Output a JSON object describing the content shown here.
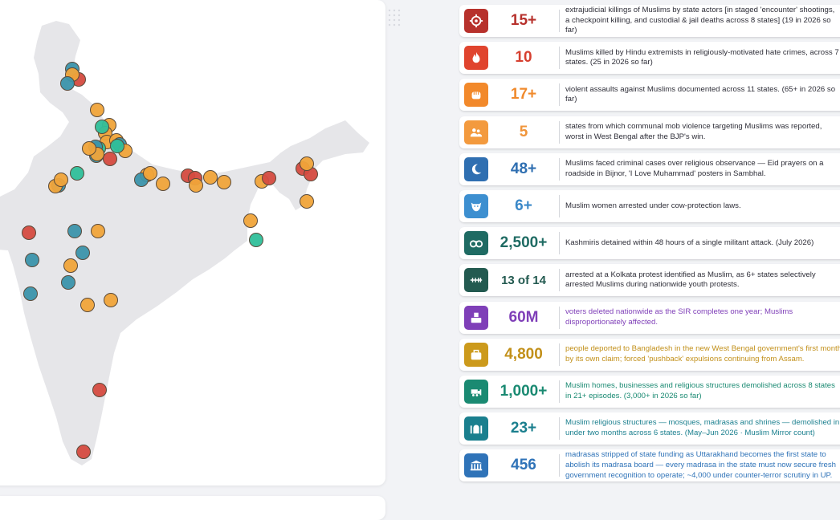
{
  "map": {
    "markers": [
      {
        "color": "#3b93ab"
      },
      {
        "color": "#d54b40"
      },
      {
        "color": "#f0a43a"
      },
      {
        "color": "#3b93ab"
      },
      {
        "color": "#f0a43a"
      },
      {
        "color": "#f0a43a"
      },
      {
        "color": "#f0a43a"
      },
      {
        "color": "#2fbf9a"
      },
      {
        "color": "#f0a43a"
      },
      {
        "color": "#f0a43a"
      },
      {
        "color": "#2fbf9a"
      },
      {
        "color": "#3b93ab"
      },
      {
        "color": "#3b93ab"
      },
      {
        "color": "#3b93ab"
      },
      {
        "color": "#f0a43a"
      },
      {
        "color": "#f0a43a"
      },
      {
        "color": "#d54b40"
      },
      {
        "color": "#f0a43a"
      },
      {
        "color": "#2fbf9a"
      },
      {
        "color": "#3b93ab"
      },
      {
        "color": "#f0a43a"
      },
      {
        "color": "#f0a43a"
      },
      {
        "color": "#f0a43a"
      },
      {
        "color": "#3b93ab"
      },
      {
        "color": "#f0a43a"
      },
      {
        "color": "#2fbf9a"
      },
      {
        "color": "#d54b40"
      },
      {
        "color": "#d54b40"
      },
      {
        "color": "#f0a43a"
      },
      {
        "color": "#f0a43a"
      },
      {
        "color": "#f0a43a"
      },
      {
        "color": "#f0a43a"
      },
      {
        "color": "#f0a43a"
      },
      {
        "color": "#d54b40"
      },
      {
        "color": "#d54b40"
      },
      {
        "color": "#d54b40"
      },
      {
        "color": "#f0a43a"
      },
      {
        "color": "#f0a43a"
      },
      {
        "color": "#f0a43a"
      },
      {
        "color": "#2fbf9a"
      },
      {
        "color": "#d54b40"
      },
      {
        "color": "#3b93ab"
      },
      {
        "color": "#f0a43a"
      },
      {
        "color": "#3b93ab"
      },
      {
        "color": "#3b93ab"
      },
      {
        "color": "#f0a43a"
      },
      {
        "color": "#3b93ab"
      },
      {
        "color": "#3b93ab"
      },
      {
        "color": "#f0a43a"
      },
      {
        "color": "#f0a43a"
      },
      {
        "color": "#d54b40"
      },
      {
        "color": "#d54b40"
      }
    ]
  },
  "stats": [
    {
      "icon": "crosshair-icon",
      "color": "#b7312c",
      "value": "15+",
      "value_color": "#b7312c",
      "text_color": "#2e2e38",
      "text": "extrajudicial killings of Muslims by state actors [in staged 'encounter' shootings,\na checkpoint killing, and custodial & jail deaths across 8 states] (19 in 2026 so\nfar)"
    },
    {
      "icon": "flame-icon",
      "color": "#e0442e",
      "value": "10",
      "value_color": "#d64030",
      "text_color": "#2e2e38",
      "text": "Muslims killed by Hindu extremists in religiously-motivated hate crimes, across 7\nstates. (25 in 2026 so far)"
    },
    {
      "icon": "fist-icon",
      "color": "#f2892b",
      "value": "17+",
      "value_color": "#f08a2c",
      "text_color": "#2e2e38",
      "text": "violent assaults against Muslims documented across 11 states. (65+ in 2026 so\nfar)"
    },
    {
      "icon": "mob-icon",
      "color": "#f39a3e",
      "value": "5",
      "value_color": "#f0953b",
      "text_color": "#2e2e38",
      "text": "states from which communal mob violence targeting Muslims was reported,\nworst in West Bengal after the BJP's win."
    },
    {
      "icon": "crescent-icon",
      "color": "#2f6fb1",
      "value": "48+",
      "value_color": "#2f6fb1",
      "text_color": "#2e2e38",
      "text": "Muslims faced criminal cases over religious observance — Eid prayers on a\nroadside in Bijnor, 'I Love Muhammad' posters in Sambhal."
    },
    {
      "icon": "cow-icon",
      "color": "#3d8fd0",
      "value": "6+",
      "value_color": "#3a88c8",
      "text_color": "#2e2e38",
      "text": "Muslim women arrested under cow-protection laws."
    },
    {
      "icon": "handcuffs-icon",
      "color": "#1f6b63",
      "value": "2,500+",
      "value_color": "#1f6b63",
      "text_color": "#2e2e38",
      "text": "Kashmiris detained within 48 hours of a single militant attack. (July 2026)"
    },
    {
      "icon": "chain-icon",
      "color": "#235a50",
      "value": "13 of 14",
      "value_color": "#235a50",
      "text_color": "#2e2e38",
      "text": "arrested at a Kolkata protest identified as Muslim, as 6+ states selectively\narrested Muslims during nationwide youth protests."
    },
    {
      "icon": "ballot-icon",
      "color": "#7f3fb8",
      "value": "60M",
      "value_color": "#7f3fb8",
      "text_color": "#7f3fb8",
      "text": "voters deleted nationwide as the SIR completes one year; Muslims\ndisproportionately affected."
    },
    {
      "icon": "suitcase-icon",
      "color": "#cc9a1c",
      "value": "4,800",
      "value_color": "#c2901a",
      "text_color": "#c2901a",
      "text": "people deported to Bangladesh in the new West Bengal government's first month,\nby its own claim; forced 'pushback' expulsions continuing from Assam."
    },
    {
      "icon": "bulldozer-icon",
      "color": "#1a8a72",
      "value": "1,000+",
      "value_color": "#1a8a72",
      "text_color": "#1a8a72",
      "text": "Muslim homes, businesses and religious structures demolished across 8 states\nin 21+ episodes. (3,000+ in 2026 so far)"
    },
    {
      "icon": "mosque-icon",
      "color": "#1a7f8e",
      "value": "23+",
      "value_color": "#1a7f8e",
      "text_color": "#1a7f8e",
      "text": "Muslim religious structures — mosques, madrasas and shrines — demolished in\nunder two months across 6 states. (May–Jun 2026 · Muslim Mirror count)"
    },
    {
      "icon": "institution-icon",
      "color": "#2f73b8",
      "value": "456",
      "value_color": "#2f73b8",
      "text_color": "#2f73b8",
      "text": "madrasas stripped of state funding as Uttarakhand becomes the first state to\nabolish its madrasa board — every madrasa in the state must now secure fresh\ngovernment recognition to operate; ~4,000 under counter-terror scrutiny in UP."
    }
  ]
}
